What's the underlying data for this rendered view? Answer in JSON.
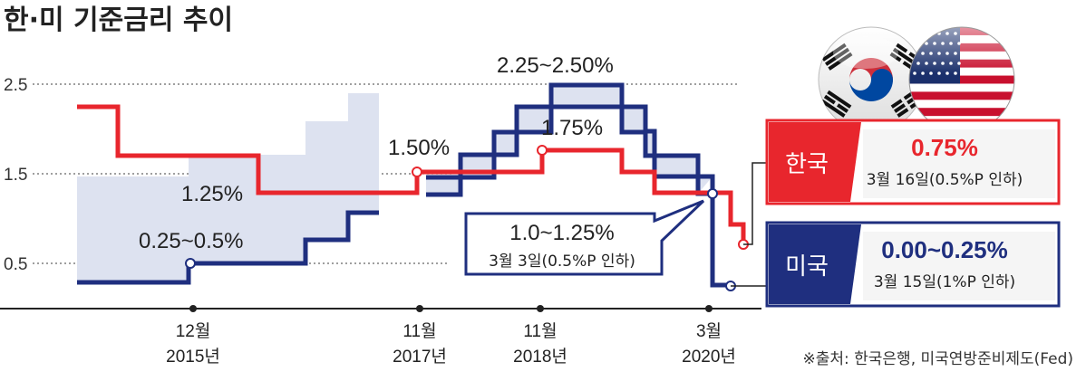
{
  "title": "한·미 기준금리 추이",
  "source": "※출처: 한국은행, 미국연방준비제도(Fed)",
  "colors": {
    "korea": "#e8262d",
    "us": "#1f2f7f",
    "band_fill": "#dde2f0"
  },
  "chart_data": {
    "type": "line",
    "ylim": [
      0,
      2.7
    ],
    "yticks": [
      "2.5",
      "1.5",
      "0.5"
    ],
    "xticks": [
      {
        "month": "12월",
        "year": "2015년"
      },
      {
        "month": "11월",
        "year": "2017년"
      },
      {
        "month": "11월",
        "year": "2018년"
      },
      {
        "month": "3월",
        "year": "2020년"
      }
    ],
    "series": [
      {
        "key": "korea",
        "steps": [
          {
            "date": "2015-12",
            "value": 1.5
          },
          {
            "date": "2016-06",
            "value": 1.25
          },
          {
            "date": "2017-11",
            "value": 1.5
          },
          {
            "date": "2018-11",
            "value": 1.75
          },
          {
            "date": "2019-07",
            "value": 1.5
          },
          {
            "date": "2019-10",
            "value": 1.25
          },
          {
            "date": "2020-03",
            "value": 0.75
          }
        ]
      },
      {
        "key": "us",
        "band": [
          {
            "date": "2015-12",
            "low": 0.25,
            "high": 0.5
          },
          {
            "date": "2016-12",
            "low": 0.5,
            "high": 0.75
          },
          {
            "date": "2017-03",
            "low": 0.75,
            "high": 1.0
          },
          {
            "date": "2017-06",
            "low": 1.0,
            "high": 1.25
          },
          {
            "date": "2017-12",
            "low": 1.25,
            "high": 1.5
          },
          {
            "date": "2018-03",
            "low": 1.5,
            "high": 1.75
          },
          {
            "date": "2018-06",
            "low": 1.75,
            "high": 2.0
          },
          {
            "date": "2018-09",
            "low": 2.0,
            "high": 2.25
          },
          {
            "date": "2018-12",
            "low": 2.25,
            "high": 2.5
          },
          {
            "date": "2019-07",
            "low": 2.0,
            "high": 2.25
          },
          {
            "date": "2019-09",
            "low": 1.75,
            "high": 2.0
          },
          {
            "date": "2019-10",
            "low": 1.5,
            "high": 1.75
          },
          {
            "date": "2020-03",
            "low": 1.0,
            "high": 1.25
          },
          {
            "date": "2020-03",
            "low": 0.0,
            "high": 0.25
          }
        ]
      }
    ],
    "annotations": {
      "kr_125": "1.25%",
      "kr_150": "1.50%",
      "kr_175": "1.75%",
      "us_025_05": "0.25~0.5%",
      "us_225_250": "2.25~2.50%",
      "us_cut_rate": "1.0~1.25%",
      "us_cut_note": "3월 3일(0.5%P 인하)"
    },
    "callouts": {
      "korea": {
        "label": "한국",
        "rate": "0.75%",
        "note": "3월 16일(0.5%P 인하)"
      },
      "us": {
        "label": "미국",
        "rate": "0.00~0.25%",
        "note": "3월 15일(1%P 인하)"
      }
    }
  }
}
